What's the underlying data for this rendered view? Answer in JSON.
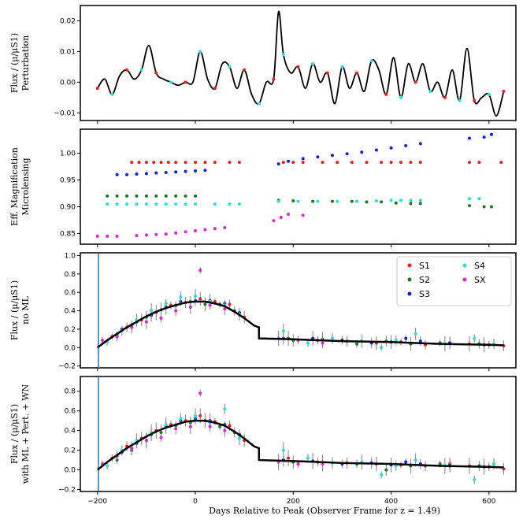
{
  "figure": {
    "xlabel": "Days Relative to Peak (Observer Frame for z = 1.49)",
    "xticks": [
      "−200",
      "0",
      "200",
      "400",
      "600"
    ]
  },
  "colors": {
    "S1": "#e8201d",
    "S2": "#1a7a1a",
    "S3": "#1020e0",
    "S4": "#22e0e0",
    "SX": "#e020e0",
    "model": "#000000",
    "err": "#808080",
    "vline": "#1f77b4"
  },
  "legend": {
    "S1": "S1",
    "S2": "S2",
    "S3": "S3",
    "S4": "S4",
    "SX": "SX"
  },
  "chart_data": [
    {
      "type": "line",
      "panel": "perturbation",
      "ylabel": [
        "Flux / (μ/μS1)",
        "Perturbation"
      ],
      "xlim": [
        -235,
        655
      ],
      "ylim": [
        -0.0125,
        0.025
      ],
      "yticks": [
        "0.02",
        "0.01",
        "0.00",
        "−0.01"
      ],
      "yticks_values": [
        0.02,
        0.01,
        0.0,
        -0.01
      ],
      "curve_x": [
        -200,
        -185,
        -170,
        -155,
        -140,
        -125,
        -110,
        -95,
        -80,
        -65,
        -50,
        -35,
        -20,
        -5,
        10,
        25,
        40,
        55,
        70,
        85,
        100,
        115,
        130,
        145,
        160,
        170,
        180,
        195,
        210,
        225,
        240,
        255,
        270,
        285,
        300,
        315,
        330,
        345,
        360,
        375,
        390,
        405,
        420,
        435,
        450,
        465,
        480,
        495,
        510,
        525,
        540,
        555,
        570,
        585,
        600,
        615,
        630
      ],
      "curve_y": [
        -0.002,
        0.001,
        -0.004,
        0.002,
        0.004,
        0.001,
        0.004,
        0.012,
        0.003,
        0.001,
        0.0,
        -0.001,
        0.0,
        0.0,
        0.01,
        0.001,
        -0.002,
        0.006,
        0.005,
        -0.002,
        0.004,
        -0.004,
        -0.007,
        0.0,
        0.001,
        0.023,
        0.009,
        0.003,
        0.005,
        -0.002,
        0.006,
        0.0,
        0.003,
        -0.007,
        0.005,
        -0.002,
        0.003,
        -0.003,
        0.007,
        0.004,
        -0.004,
        0.008,
        -0.005,
        0.006,
        0.0,
        0.006,
        -0.003,
        0.0,
        -0.005,
        0.004,
        -0.006,
        0.011,
        -0.006,
        -0.005,
        -0.004,
        -0.011,
        -0.003
      ]
    },
    {
      "type": "scatter",
      "panel": "microlensing",
      "ylabel": [
        "Eff. Magnification",
        "Microlensing"
      ],
      "xlim": [
        -235,
        655
      ],
      "ylim": [
        0.83,
        1.045
      ],
      "yticks": [
        "1.00",
        "0.95",
        "0.90",
        "0.85"
      ],
      "yticks_values": [
        1.0,
        0.95,
        0.9,
        0.85
      ],
      "series": [
        {
          "name": "S1",
          "x": [
            -130,
            -115,
            -100,
            -85,
            -70,
            -55,
            -40,
            -20,
            0,
            20,
            40,
            70,
            90,
            180,
            200,
            220,
            260,
            290,
            320,
            350,
            380,
            400,
            420,
            440,
            460,
            560,
            580,
            625
          ],
          "y": [
            0.983,
            0.983,
            0.983,
            0.983,
            0.983,
            0.983,
            0.983,
            0.983,
            0.983,
            0.983,
            0.983,
            0.983,
            0.983,
            0.983,
            0.983,
            0.983,
            0.983,
            0.983,
            0.983,
            0.983,
            0.983,
            0.983,
            0.983,
            0.983,
            0.983,
            0.983,
            0.983,
            0.983
          ]
        },
        {
          "name": "S2",
          "x": [
            -180,
            -160,
            -140,
            -120,
            -100,
            -80,
            -60,
            -40,
            -20,
            0,
            170,
            200,
            240,
            280,
            320,
            350,
            380,
            410,
            440,
            460,
            560,
            590,
            605
          ],
          "y": [
            0.92,
            0.92,
            0.92,
            0.92,
            0.92,
            0.92,
            0.92,
            0.92,
            0.92,
            0.92,
            0.912,
            0.911,
            0.91,
            0.91,
            0.91,
            0.909,
            0.909,
            0.907,
            0.906,
            0.906,
            0.902,
            0.9,
            0.9
          ]
        },
        {
          "name": "S3",
          "x": [
            -160,
            -140,
            -120,
            -100,
            -80,
            -60,
            -40,
            -20,
            0,
            20,
            170,
            190,
            220,
            250,
            280,
            310,
            340,
            370,
            400,
            430,
            460,
            560,
            590,
            605
          ],
          "y": [
            0.96,
            0.96,
            0.961,
            0.962,
            0.963,
            0.964,
            0.965,
            0.966,
            0.967,
            0.968,
            0.98,
            0.985,
            0.99,
            0.993,
            0.996,
            0.999,
            1.002,
            1.006,
            1.01,
            1.014,
            1.018,
            1.028,
            1.03,
            1.035
          ]
        },
        {
          "name": "S4",
          "x": [
            -180,
            -160,
            -140,
            -120,
            -100,
            -80,
            -60,
            -40,
            -20,
            0,
            40,
            70,
            90,
            170,
            210,
            250,
            290,
            330,
            370,
            400,
            420,
            440,
            460,
            560,
            580
          ],
          "y": [
            0.905,
            0.905,
            0.905,
            0.905,
            0.905,
            0.905,
            0.905,
            0.905,
            0.905,
            0.905,
            0.905,
            0.905,
            0.905,
            0.91,
            0.91,
            0.91,
            0.91,
            0.91,
            0.911,
            0.912,
            0.912,
            0.912,
            0.912,
            0.915,
            0.915
          ]
        },
        {
          "name": "SX",
          "x": [
            -200,
            -180,
            -160,
            -120,
            -100,
            -80,
            -60,
            -40,
            -20,
            0,
            20,
            40,
            60,
            160,
            175,
            190,
            220
          ],
          "y": [
            0.845,
            0.845,
            0.845,
            0.846,
            0.847,
            0.848,
            0.849,
            0.851,
            0.853,
            0.855,
            0.857,
            0.859,
            0.861,
            0.874,
            0.88,
            0.886,
            0.884
          ]
        }
      ]
    },
    {
      "type": "scatter",
      "panel": "noML",
      "ylabel": [
        "Flux / (μ/μS1)",
        "no ML"
      ],
      "xlim": [
        -235,
        655
      ],
      "ylim": [
        -0.22,
        1.03
      ],
      "yticks": [
        "1.0",
        "0.8",
        "0.6",
        "0.4",
        "0.2",
        "0.0",
        "−0.2"
      ],
      "yticks_values": [
        1.0,
        0.8,
        0.6,
        0.4,
        0.2,
        0.0,
        -0.2
      ],
      "vline_x": -198,
      "model_x": [
        -200,
        -180,
        -160,
        -140,
        -120,
        -100,
        -80,
        -60,
        -40,
        -20,
        0,
        20,
        40,
        60,
        80,
        100,
        120,
        130,
        130,
        200,
        300,
        400,
        500,
        600,
        630
      ],
      "model_y": [
        0.0,
        0.08,
        0.15,
        0.22,
        0.28,
        0.34,
        0.39,
        0.43,
        0.46,
        0.49,
        0.5,
        0.5,
        0.48,
        0.45,
        0.39,
        0.32,
        0.24,
        0.22,
        0.1,
        0.09,
        0.07,
        0.06,
        0.04,
        0.03,
        0.025
      ],
      "series": [
        {
          "name": "S1",
          "x": [
            -170,
            -140,
            -110,
            -80,
            -50,
            -20,
            10,
            40,
            70,
            100,
            190,
            250,
            310,
            370,
            420,
            470,
            520,
            560,
            600,
            630
          ],
          "y": [
            0.12,
            0.22,
            0.3,
            0.38,
            0.46,
            0.49,
            0.53,
            0.5,
            0.47,
            0.33,
            0.1,
            0.08,
            0.07,
            0.05,
            0.06,
            0.03,
            0.05,
            0.04,
            0.03,
            0.02
          ]
        },
        {
          "name": "S2",
          "x": [
            -160,
            -130,
            -100,
            -70,
            -40,
            -10,
            20,
            50,
            80,
            200,
            260,
            330,
            390,
            440,
            500,
            580
          ],
          "y": [
            0.14,
            0.24,
            0.33,
            0.41,
            0.46,
            0.5,
            0.47,
            0.47,
            0.4,
            0.08,
            0.09,
            0.04,
            0.07,
            0.04,
            0.05,
            0.04
          ]
        },
        {
          "name": "S3",
          "x": [
            -150,
            -120,
            -90,
            -60,
            -30,
            0,
            30,
            60,
            90,
            180,
            240,
            300,
            360,
            400,
            430,
            460,
            520,
            590
          ],
          "y": [
            0.2,
            0.28,
            0.35,
            0.44,
            0.5,
            0.51,
            0.51,
            0.48,
            0.38,
            0.1,
            0.1,
            0.08,
            0.05,
            0.06,
            0.1,
            0.07,
            0.05,
            0.03
          ]
        },
        {
          "name": "S4",
          "x": [
            -180,
            -150,
            -120,
            -90,
            -60,
            -30,
            0,
            30,
            60,
            90,
            180,
            230,
            280,
            340,
            380,
            410,
            450,
            510,
            570,
            610
          ],
          "y": [
            0.06,
            0.18,
            0.3,
            0.4,
            0.48,
            0.55,
            0.56,
            0.5,
            0.46,
            0.36,
            0.18,
            0.05,
            0.1,
            0.07,
            0.0,
            0.08,
            0.15,
            0.04,
            0.1,
            0.04
          ]
        },
        {
          "name": "SX",
          "x": [
            -190,
            -160,
            -130,
            -100,
            -70,
            -40,
            -10,
            10,
            30,
            60,
            170,
            210,
            260
          ],
          "y": [
            0.08,
            0.12,
            0.22,
            0.28,
            0.32,
            0.4,
            0.44,
            0.84,
            0.46,
            0.42,
            0.1,
            0.08,
            0.05
          ]
        }
      ]
    },
    {
      "type": "scatter",
      "panel": "withML",
      "ylabel": [
        "Flux / (μ/μS1)",
        "with ML + Pert. + WN"
      ],
      "xlim": [
        -235,
        655
      ],
      "ylim": [
        -0.22,
        0.95
      ],
      "yticks": [
        "0.8",
        "0.6",
        "0.4",
        "0.2",
        "0.0",
        "−0.2"
      ],
      "yticks_values": [
        0.8,
        0.6,
        0.4,
        0.2,
        0.0,
        -0.2
      ],
      "vline_x": -198,
      "model_x": [
        -200,
        -180,
        -160,
        -140,
        -120,
        -100,
        -80,
        -60,
        -40,
        -20,
        0,
        20,
        40,
        60,
        80,
        100,
        120,
        130,
        130,
        200,
        300,
        400,
        500,
        600,
        630
      ],
      "model_y": [
        0.0,
        0.08,
        0.15,
        0.22,
        0.28,
        0.34,
        0.39,
        0.43,
        0.46,
        0.49,
        0.5,
        0.5,
        0.48,
        0.45,
        0.39,
        0.32,
        0.24,
        0.22,
        0.1,
        0.09,
        0.07,
        0.06,
        0.04,
        0.03,
        0.025
      ],
      "series": [
        {
          "name": "S1",
          "x": [
            -170,
            -140,
            -110,
            -80,
            -50,
            -20,
            10,
            40,
            70,
            100,
            190,
            250,
            310,
            370,
            420,
            470,
            520,
            560,
            600,
            630
          ],
          "y": [
            0.12,
            0.24,
            0.32,
            0.4,
            0.46,
            0.5,
            0.55,
            0.49,
            0.45,
            0.3,
            0.12,
            0.08,
            0.07,
            0.06,
            0.05,
            0.04,
            0.06,
            0.04,
            0.03,
            0.01
          ]
        },
        {
          "name": "S2",
          "x": [
            -160,
            -130,
            -100,
            -70,
            -40,
            -10,
            20,
            50,
            80,
            200,
            260,
            330,
            390,
            440,
            500,
            580
          ],
          "y": [
            0.1,
            0.2,
            0.3,
            0.38,
            0.45,
            0.48,
            0.5,
            0.44,
            0.38,
            0.08,
            0.07,
            0.06,
            0.0,
            0.04,
            0.06,
            0.04
          ]
        },
        {
          "name": "S3",
          "x": [
            -150,
            -120,
            -90,
            -60,
            -30,
            0,
            30,
            60,
            90,
            180,
            240,
            300,
            360,
            400,
            430,
            460,
            520,
            590
          ],
          "y": [
            0.18,
            0.27,
            0.36,
            0.45,
            0.5,
            0.52,
            0.5,
            0.46,
            0.36,
            0.1,
            0.09,
            0.06,
            0.07,
            0.05,
            0.08,
            0.06,
            0.04,
            0.03
          ]
        },
        {
          "name": "S4",
          "x": [
            -180,
            -150,
            -120,
            -90,
            -60,
            -30,
            0,
            30,
            60,
            90,
            180,
            230,
            280,
            340,
            380,
            410,
            450,
            510,
            570,
            610
          ],
          "y": [
            0.04,
            0.2,
            0.3,
            0.38,
            0.46,
            0.52,
            0.55,
            0.48,
            0.62,
            0.32,
            0.2,
            0.12,
            0.07,
            0.08,
            -0.05,
            0.04,
            0.1,
            0.04,
            -0.1,
            0.06
          ]
        },
        {
          "name": "SX",
          "x": [
            -190,
            -160,
            -130,
            -100,
            -70,
            -40,
            -10,
            10,
            30,
            60,
            170,
            210,
            260
          ],
          "y": [
            0.06,
            0.14,
            0.22,
            0.3,
            0.33,
            0.42,
            0.44,
            0.78,
            0.44,
            0.4,
            0.08,
            0.06,
            0.06
          ]
        }
      ]
    }
  ]
}
